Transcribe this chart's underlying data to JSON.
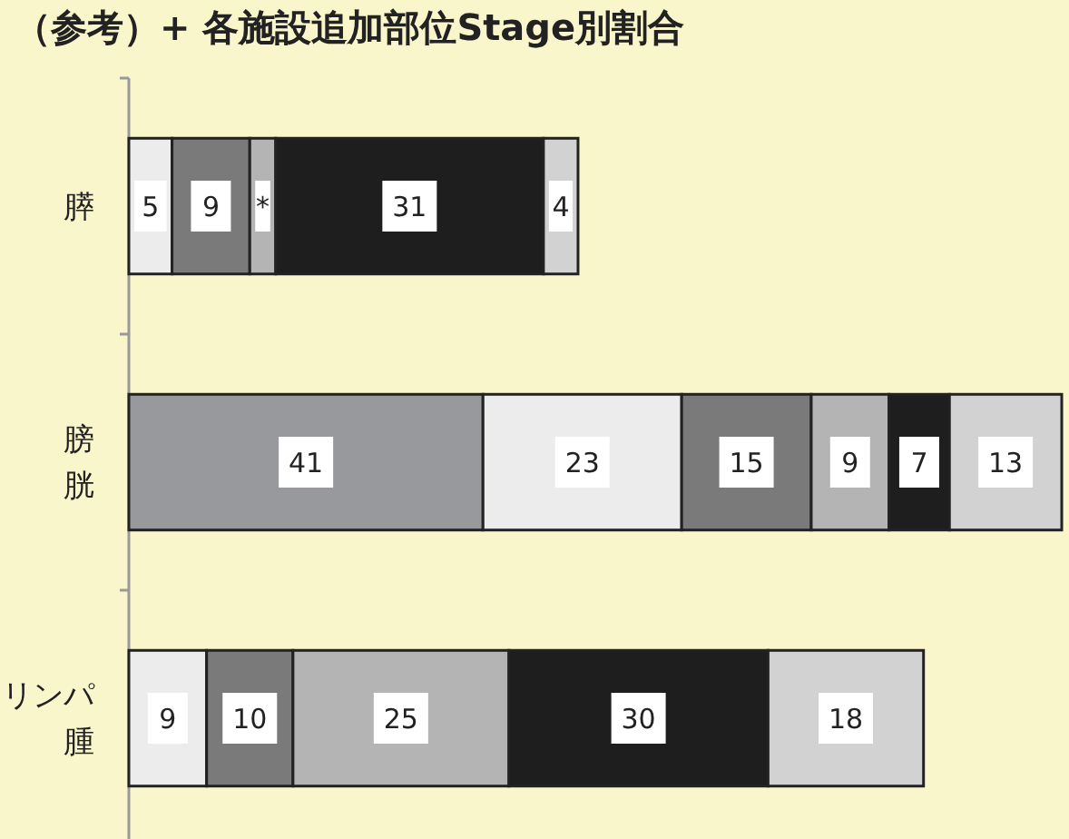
{
  "chart_data": {
    "type": "bar",
    "orientation": "horizontal",
    "stacked": true,
    "title": "（参考）+ 各施設追加部位Stage別割合",
    "categories": [
      "膵",
      "膀胱",
      "リンパ腫"
    ],
    "series": [
      {
        "color": "#98999c",
        "values": [
          null,
          41,
          null
        ],
        "value_labels": [
          null,
          "41",
          null
        ]
      },
      {
        "color": "#ececec",
        "values": [
          5,
          23,
          9
        ],
        "value_labels": [
          "5",
          "23",
          "9"
        ]
      },
      {
        "color": "#7a7a7a",
        "values": [
          9,
          15,
          10
        ],
        "value_labels": [
          "9",
          "15",
          "10"
        ]
      },
      {
        "color": "#b4b4b4",
        "values": [
          3,
          9,
          25
        ],
        "value_labels": [
          "*",
          "9",
          "25"
        ]
      },
      {
        "color": "#1e1e1e",
        "values": [
          31,
          7,
          30
        ],
        "value_labels": [
          "31",
          "7",
          "30"
        ]
      },
      {
        "color": "#d2d2d2",
        "values": [
          4,
          13,
          18
        ],
        "value_labels": [
          "4",
          "13",
          "18"
        ]
      }
    ]
  }
}
